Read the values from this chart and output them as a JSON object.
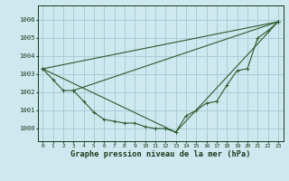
{
  "title": "Graphe pression niveau de la mer (hPa)",
  "bg_color": "#cde8ef",
  "grid_color": "#a8cdd6",
  "line_color": "#2d5a2d",
  "text_color": "#1a3a1a",
  "xlim": [
    -0.5,
    23.5
  ],
  "ylim": [
    999.3,
    1006.8
  ],
  "yticks": [
    1000,
    1001,
    1002,
    1003,
    1004,
    1005,
    1006
  ],
  "xticks": [
    0,
    1,
    2,
    3,
    4,
    5,
    6,
    7,
    8,
    9,
    10,
    11,
    12,
    13,
    14,
    15,
    16,
    17,
    18,
    19,
    20,
    21,
    22,
    23
  ],
  "series1_x": [
    0,
    1,
    2,
    3,
    4,
    5,
    6,
    7,
    8,
    9,
    10,
    11,
    12,
    13,
    14,
    15,
    16,
    17,
    18,
    19,
    20,
    21,
    22,
    23
  ],
  "series1_y": [
    1003.3,
    1002.7,
    1002.1,
    1002.1,
    1001.5,
    1000.9,
    1000.5,
    1000.4,
    1000.3,
    1000.3,
    1000.1,
    1000.0,
    1000.0,
    999.8,
    1000.7,
    1001.0,
    1001.4,
    1001.5,
    1002.4,
    1003.2,
    1003.3,
    1005.0,
    1005.4,
    1005.9
  ],
  "series2_x": [
    0,
    23
  ],
  "series2_y": [
    1003.3,
    1005.9
  ],
  "series3_x": [
    0,
    13,
    23
  ],
  "series3_y": [
    1003.3,
    999.8,
    1005.9
  ],
  "series4_x": [
    3,
    23
  ],
  "series4_y": [
    1002.1,
    1005.9
  ]
}
